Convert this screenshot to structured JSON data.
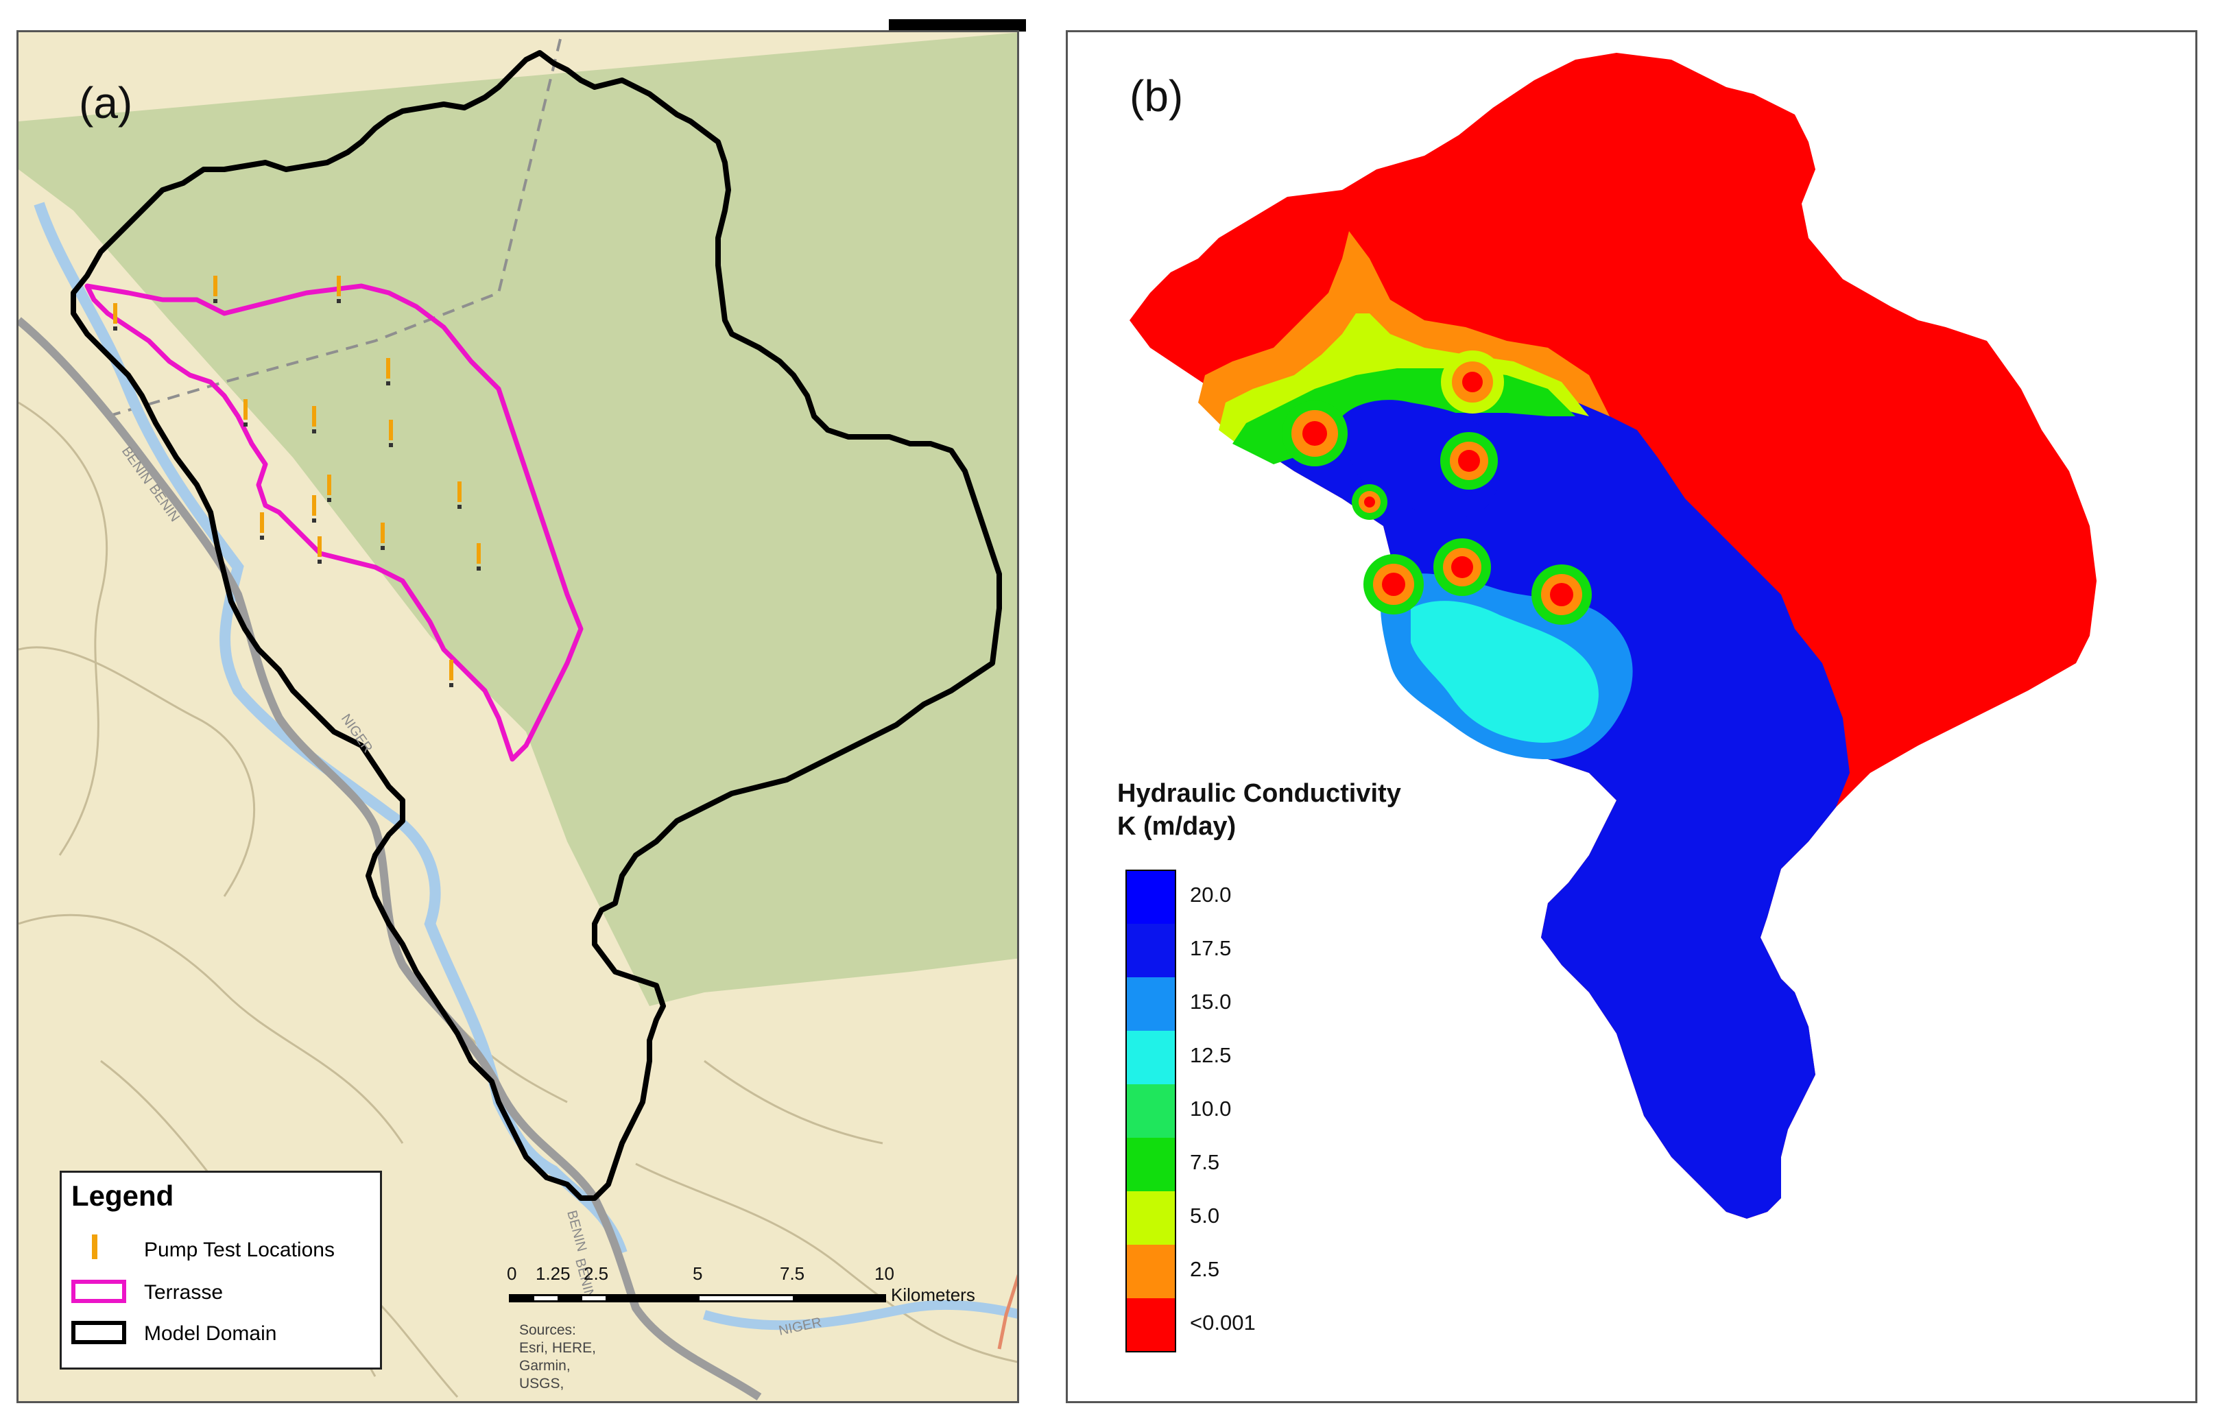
{
  "panel_a": {
    "label": "(a)",
    "map_labels": [
      "BENIN",
      "BENIN",
      "NIGER",
      "BENIN",
      "BENIN",
      "NIGER"
    ],
    "legend": {
      "title": "Legend",
      "items": [
        {
          "label": "Pump Test Locations",
          "symbol": "pump-marker",
          "color": "#f2a20a"
        },
        {
          "label": "Terrasse",
          "symbol": "outline-box",
          "color": "#ec14c8"
        },
        {
          "label": "Model Domain",
          "symbol": "outline-box",
          "color": "#000000"
        }
      ]
    },
    "scale_bar": {
      "ticks": [
        "0",
        "1.25",
        "2.5",
        "5",
        "7.5",
        "10"
      ],
      "unit": "Kilometers"
    },
    "sources_text": [
      "Sources:",
      "Esri, HERE,",
      "Garmin,",
      "USGS,"
    ],
    "colors": {
      "terrain_light": "#f1e9c9",
      "terrain_green": "#c9d6a6",
      "river": "#a9cdeb",
      "road": "#9a9a9a",
      "model_domain": "#000000",
      "terrasse": "#ec14c8",
      "pump": "#f2a20a"
    }
  },
  "panel_b": {
    "label": "(b)",
    "colorbar": {
      "title_line1": "Hydraulic Conductivity",
      "title_line2": "K (m/day)",
      "labels": [
        "20.0",
        "17.5",
        "15.0",
        "12.5",
        "10.0",
        "7.5",
        "5.0",
        "2.5",
        "<0.001"
      ],
      "colors": [
        "#0000ff",
        "#0a14ee",
        "#1791f5",
        "#20f2e8",
        "#1fe65c",
        "#11dd0d",
        "#c6fb00",
        "#ff8c0a",
        "#ff0000"
      ]
    }
  }
}
